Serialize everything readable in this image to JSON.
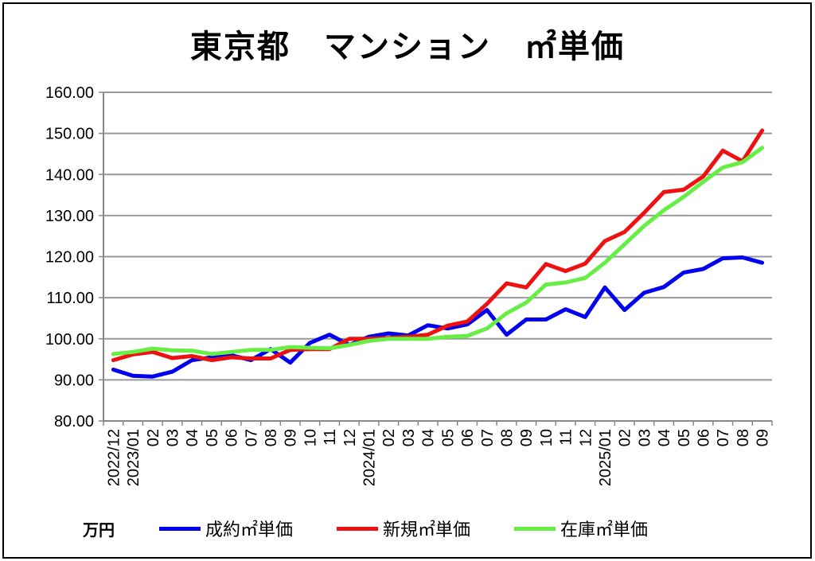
{
  "chart_data": {
    "type": "line",
    "title": "東京都　マンション　㎡単価",
    "unit_label": "万円",
    "ylim": [
      80,
      160
    ],
    "yticks": [
      "80.00",
      "90.00",
      "100.00",
      "110.00",
      "120.00",
      "130.00",
      "140.00",
      "150.00",
      "160.00"
    ],
    "grid": true,
    "legend_position": "bottom",
    "categories": [
      "2022/12",
      "2023/01",
      "02",
      "03",
      "04",
      "05",
      "06",
      "07",
      "08",
      "09",
      "10",
      "11",
      "12",
      "2024/01",
      "02",
      "03",
      "04",
      "05",
      "06",
      "07",
      "08",
      "09",
      "10",
      "11",
      "12",
      "2025/01",
      "02",
      "03",
      "04",
      "05",
      "06",
      "07",
      "08",
      "09"
    ],
    "series": [
      {
        "name": "成約㎡単価",
        "color": "#0000ee",
        "values": [
          92.5,
          91,
          90.8,
          92,
          94.8,
          95.5,
          96,
          94.8,
          97.5,
          94.2,
          99,
          101,
          98.5,
          100.5,
          101.3,
          100.8,
          103.3,
          102.5,
          103.5,
          107,
          101,
          104.7,
          104.7,
          107.2,
          105.3,
          112.5,
          107,
          111.2,
          112.6,
          116.1,
          117,
          119.6,
          119.8,
          118.5
        ]
      },
      {
        "name": "新規㎡単価",
        "color": "#ee1111",
        "values": [
          94.8,
          96.2,
          96.8,
          95.3,
          95.8,
          94.8,
          95.5,
          95.2,
          95.2,
          97.3,
          97.5,
          97.5,
          100,
          100,
          100.2,
          100.5,
          101,
          103.2,
          104.2,
          108.5,
          113.5,
          112.5,
          118.2,
          116.5,
          118.3,
          123.8,
          126,
          130.7,
          135.7,
          136.3,
          139.5,
          145.8,
          143.2,
          150.7
        ]
      },
      {
        "name": "在庫㎡単価",
        "color": "#66ee44",
        "values": [
          96.3,
          96.8,
          97.6,
          97.2,
          97.1,
          96.3,
          96.8,
          97.3,
          97.3,
          98,
          97.8,
          97.7,
          98.5,
          99.5,
          100,
          100,
          100,
          100.5,
          100.7,
          102.5,
          106.2,
          108.8,
          113.2,
          113.7,
          114.8,
          118.5,
          123,
          127.5,
          131.3,
          134.5,
          138.2,
          141.7,
          143,
          146.5
        ]
      }
    ]
  }
}
